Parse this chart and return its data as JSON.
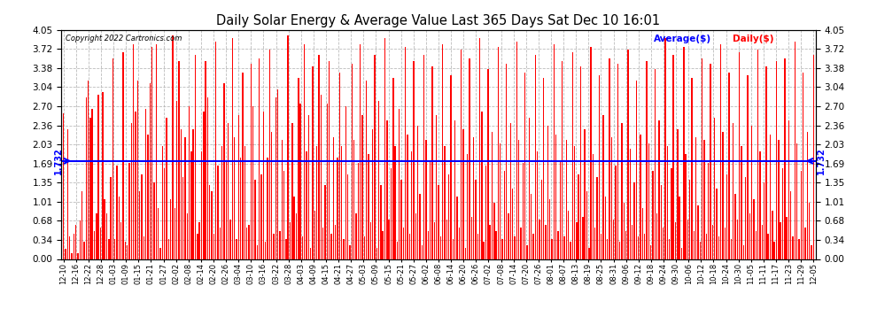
{
  "title": "Daily Solar Energy & Average Value Last 365 Days Sat Dec 10 16:01",
  "copyright": "Copyright 2022 Cartronics.com",
  "average_value": 1.732,
  "average_label": "1.732",
  "ylim": [
    0.0,
    4.05
  ],
  "yticks": [
    0.0,
    0.34,
    0.68,
    1.01,
    1.35,
    1.69,
    2.03,
    2.36,
    2.7,
    3.04,
    3.38,
    3.72,
    4.05
  ],
  "bar_color": "#ff0000",
  "average_line_color": "#0000ff",
  "background_color": "#ffffff",
  "grid_color": "#aaaaaa",
  "legend_average_color": "#0000ff",
  "legend_daily_color": "#ff0000",
  "x_labels": [
    "12-10",
    "12-16",
    "12-22",
    "12-28",
    "01-03",
    "01-09",
    "01-15",
    "01-21",
    "01-27",
    "02-02",
    "02-08",
    "02-14",
    "02-20",
    "02-26",
    "03-04",
    "03-10",
    "03-16",
    "03-22",
    "03-28",
    "04-03",
    "04-09",
    "04-15",
    "04-21",
    "04-27",
    "05-03",
    "05-09",
    "05-15",
    "05-21",
    "05-27",
    "06-02",
    "06-08",
    "06-14",
    "06-20",
    "06-26",
    "07-02",
    "07-08",
    "07-14",
    "07-20",
    "07-26",
    "08-01",
    "08-07",
    "08-13",
    "08-19",
    "08-25",
    "08-31",
    "09-06",
    "09-12",
    "09-18",
    "09-24",
    "09-30",
    "10-06",
    "10-12",
    "10-18",
    "10-24",
    "10-30",
    "11-05",
    "11-11",
    "11-17",
    "11-23",
    "11-29",
    "12-05"
  ],
  "daily_values": [
    2.58,
    0.18,
    2.3,
    0.4,
    0.1,
    0.45,
    0.6,
    0.1,
    0.68,
    1.2,
    0.3,
    2.85,
    3.15,
    2.5,
    2.65,
    0.5,
    0.8,
    2.9,
    0.55,
    2.95,
    1.05,
    0.8,
    0.35,
    1.45,
    3.55,
    0.35,
    1.65,
    1.1,
    0.65,
    3.65,
    0.3,
    0.25,
    1.7,
    2.4,
    3.8,
    2.6,
    3.15,
    1.2,
    1.5,
    0.4,
    2.65,
    2.2,
    3.1,
    3.75,
    1.35,
    3.8,
    0.9,
    0.2,
    2.0,
    1.6,
    2.5,
    0.35,
    1.05,
    3.95,
    0.9,
    2.8,
    3.5,
    2.3,
    1.45,
    2.15,
    0.8,
    2.7,
    1.9,
    2.3,
    3.6,
    0.45,
    0.65,
    1.9,
    2.6,
    3.5,
    2.85,
    1.3,
    1.2,
    0.45,
    3.85,
    1.65,
    0.55,
    2.0,
    3.1,
    1.75,
    2.4,
    0.7,
    3.9,
    2.15,
    0.35,
    2.55,
    1.8,
    3.3,
    2.0,
    0.55,
    0.6,
    3.45,
    2.7,
    1.4,
    0.25,
    3.55,
    1.5,
    2.6,
    0.3,
    1.8,
    3.7,
    2.25,
    0.45,
    2.85,
    3.0,
    0.5,
    2.1,
    1.55,
    0.35,
    3.95,
    0.65,
    2.4,
    1.1,
    0.8,
    3.2,
    2.75,
    0.4,
    3.8,
    1.9,
    2.55,
    0.2,
    3.4,
    0.85,
    2.0,
    3.6,
    2.9,
    0.55,
    1.3,
    2.75,
    3.5,
    0.45,
    2.15,
    0.6,
    1.8,
    3.3,
    2.0,
    0.35,
    2.7,
    1.5,
    0.25,
    3.45,
    2.1,
    0.8,
    1.7,
    3.8,
    2.55,
    0.4,
    3.15,
    1.85,
    0.65,
    2.3,
    3.6,
    0.2,
    2.8,
    1.3,
    0.5,
    3.9,
    2.45,
    0.7,
    1.6,
    3.2,
    2.0,
    0.3,
    2.65,
    1.4,
    0.55,
    3.75,
    2.2,
    0.45,
    1.9,
    3.5,
    0.8,
    2.35,
    1.15,
    0.25,
    3.6,
    2.1,
    0.5,
    1.75,
    3.4,
    0.65,
    2.55,
    1.3,
    0.4,
    3.8,
    2.0,
    0.7,
    1.5,
    3.25,
    0.35,
    2.45,
    1.1,
    0.55,
    3.7,
    2.3,
    0.2,
    1.85,
    3.55,
    0.75,
    2.15,
    1.4,
    0.45,
    3.9,
    2.6,
    0.3,
    1.65,
    3.35,
    0.6,
    2.25,
    1.0,
    0.5,
    3.75,
    2.05,
    0.35,
    1.55,
    3.45,
    0.8,
    2.4,
    1.25,
    0.4,
    3.85,
    2.1,
    0.55,
    1.7,
    3.3,
    0.25,
    2.5,
    1.15,
    0.45,
    3.6,
    1.9,
    0.7,
    1.4,
    3.2,
    0.6,
    2.35,
    1.05,
    0.35,
    3.8,
    2.2,
    0.5,
    1.75,
    3.5,
    0.4,
    2.1,
    0.85,
    0.3,
    3.65,
    2.0,
    0.65,
    1.5,
    3.4,
    0.75,
    2.3,
    1.2,
    0.2,
    3.75,
    1.85,
    0.55,
    1.45,
    3.25,
    0.45,
    2.55,
    1.1,
    0.35,
    3.55,
    2.15,
    0.7,
    1.65,
    3.45,
    0.3,
    2.4,
    1.0,
    0.5,
    3.7,
    1.95,
    0.6,
    1.35,
    3.15,
    0.4,
    2.2,
    0.9,
    0.45,
    3.5,
    2.05,
    0.25,
    1.55,
    3.35,
    0.8,
    2.45,
    1.3,
    0.55,
    3.9,
    2.0,
    0.35,
    1.6,
    3.6,
    0.65,
    2.3,
    1.1,
    0.2,
    3.75,
    1.85,
    0.7,
    1.4,
    3.2,
    0.5,
    2.15,
    0.95,
    0.3,
    3.55,
    2.1,
    0.45,
    1.7,
    3.45,
    0.6,
    2.5,
    1.25,
    0.4,
    3.8,
    2.25,
    0.55,
    1.5,
    3.3,
    0.35,
    2.4,
    1.15,
    0.7,
    3.65,
    2.0,
    0.25,
    1.45,
    3.25,
    0.8,
    2.35,
    1.05,
    0.5,
    3.7,
    1.9,
    0.6,
    1.35,
    3.4,
    0.45,
    2.2,
    0.85,
    0.3,
    3.5,
    2.1,
    0.65,
    1.6,
    3.55,
    0.75,
    2.45,
    1.2,
    0.4,
    3.85,
    2.05,
    0.35,
    1.55,
    3.3,
    0.55,
    2.25,
    1.0,
    0.25,
    3.6,
    1.95,
    0.2
  ]
}
